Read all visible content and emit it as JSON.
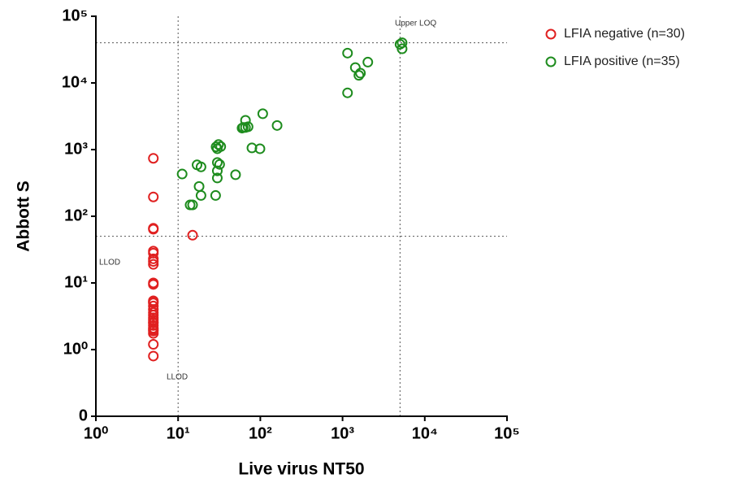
{
  "chart_data": {
    "type": "scatter",
    "x_label": "Live virus NT50",
    "y_label": "Abbott S",
    "xlog": true,
    "ylog": true,
    "xlim": [
      1,
      100000
    ],
    "ylim": [
      0,
      100000
    ],
    "xticks": [
      {
        "value": 1,
        "label": "10⁰"
      },
      {
        "value": 10,
        "label": "10¹"
      },
      {
        "value": 100,
        "label": "10²"
      },
      {
        "value": 1000,
        "label": "10³"
      },
      {
        "value": 10000,
        "label": "10⁴"
      },
      {
        "value": 100000,
        "label": "10⁵"
      }
    ],
    "yticks": [
      0,
      {
        "value": 1,
        "label": "10⁰"
      },
      {
        "value": 10,
        "label": "10¹"
      },
      {
        "value": 100,
        "label": "10²"
      },
      {
        "value": 1000,
        "label": "10³"
      },
      {
        "value": 10000,
        "label": "10⁴"
      },
      {
        "value": 100000,
        "label": "10⁵"
      }
    ],
    "reference_lines": {
      "x": [
        10,
        5000
      ],
      "y": [
        50,
        40000
      ]
    },
    "annotations": [
      "Upper LOQ",
      "LLOD",
      "LLOD"
    ],
    "legend": "top-right",
    "series": [
      {
        "name": "LFIA negative (n=30)",
        "color": "#e02020",
        "x": [
          5,
          5,
          5,
          5,
          5,
          5,
          5,
          5,
          5,
          5,
          5,
          5,
          5,
          5,
          5,
          5,
          5,
          5,
          5,
          5,
          5,
          5,
          15,
          5,
          5,
          5,
          5,
          5,
          5,
          5
        ],
        "values": [
          740,
          195,
          66,
          64,
          30,
          23,
          19,
          10,
          9.5,
          5.4,
          5,
          4.5,
          4,
          3.3,
          3,
          2.8,
          2.5,
          2.3,
          2,
          1.75,
          1.2,
          0.8,
          52,
          5.2,
          3.6,
          2.6,
          2.1,
          1.9,
          28,
          21
        ]
      },
      {
        "name": "LFIA positive (n=35)",
        "color": "#1e8c1e",
        "x": [
          11.2,
          17,
          19,
          18,
          19,
          14,
          15,
          28.6,
          30,
          30,
          30,
          32,
          30,
          31,
          33,
          50,
          62,
          66,
          71,
          66,
          79,
          99,
          107,
          160,
          1150,
          1150,
          1430,
          1580,
          1650,
          2030,
          5300,
          5300,
          60,
          5000,
          29
        ],
        "values": [
          430,
          590,
          550,
          280,
          205,
          148,
          148,
          205,
          640,
          480,
          375,
          600,
          1030,
          1190,
          1110,
          420,
          2150,
          2150,
          2200,
          2750,
          1060,
          1030,
          3450,
          2300,
          28000,
          7100,
          17000,
          13000,
          14000,
          20500,
          40000,
          32500,
          2100,
          38000,
          1100
        ]
      }
    ]
  }
}
